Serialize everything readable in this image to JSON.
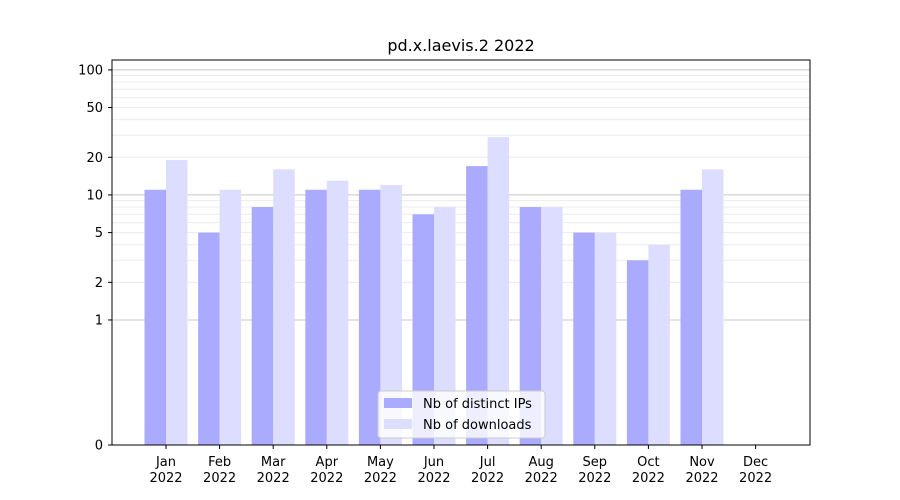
{
  "chart_data": {
    "type": "bar",
    "title": "pd.x.laevis.2 2022",
    "xlabel": "",
    "ylabel": "",
    "y_scale": "symlog",
    "ylim": [
      0,
      120
    ],
    "y_ticks": [
      0,
      1,
      2,
      5,
      10,
      20,
      50,
      100
    ],
    "y_tick_labels": [
      "0",
      "1",
      "2",
      "5",
      "10",
      "20",
      "50",
      "100"
    ],
    "categories": [
      {
        "month": "Jan",
        "year": "2022"
      },
      {
        "month": "Feb",
        "year": "2022"
      },
      {
        "month": "Mar",
        "year": "2022"
      },
      {
        "month": "Apr",
        "year": "2022"
      },
      {
        "month": "May",
        "year": "2022"
      },
      {
        "month": "Jun",
        "year": "2022"
      },
      {
        "month": "Jul",
        "year": "2022"
      },
      {
        "month": "Aug",
        "year": "2022"
      },
      {
        "month": "Sep",
        "year": "2022"
      },
      {
        "month": "Oct",
        "year": "2022"
      },
      {
        "month": "Nov",
        "year": "2022"
      },
      {
        "month": "Dec",
        "year": "2022"
      }
    ],
    "series": [
      {
        "name": "Nb of distinct IPs",
        "color": "#aaaaff",
        "values": [
          11,
          5,
          8,
          11,
          11,
          7,
          17,
          8,
          5,
          3,
          11,
          0
        ]
      },
      {
        "name": "Nb of downloads",
        "color": "#ddddff",
        "values": [
          19,
          11,
          16,
          13,
          12,
          8,
          29,
          8,
          5,
          4,
          16,
          0
        ]
      }
    ],
    "grid": true,
    "legend_position": "bottom-center"
  }
}
